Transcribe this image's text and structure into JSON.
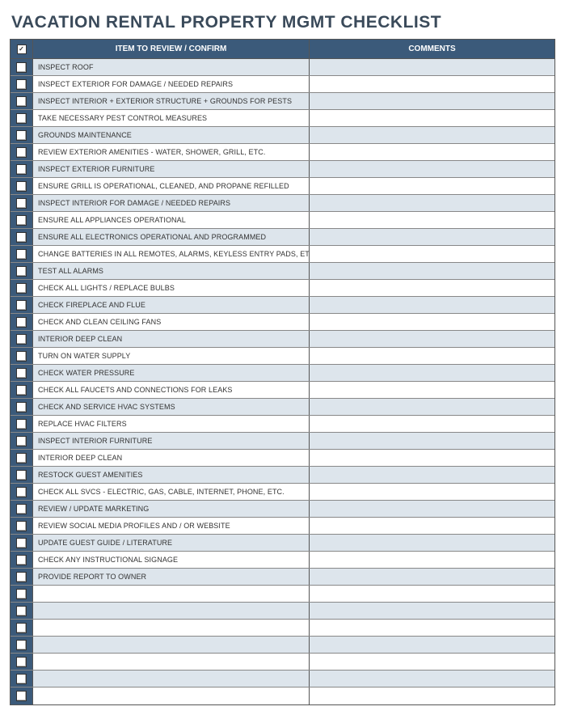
{
  "title": "VACATION RENTAL PROPERTY MGMT CHECKLIST",
  "columns": {
    "check_header_mark": "✓",
    "item": "ITEM TO REVIEW / CONFIRM",
    "comments": "COMMENTS"
  },
  "colors": {
    "header_bg": "#3b5a7a",
    "header_text": "#ffffff",
    "row_odd_bg": "#dde5ec",
    "row_even_bg": "#ffffff",
    "title_text": "#3a4a5a",
    "border": "#555555"
  },
  "rows": [
    {
      "item": "INSPECT ROOF",
      "comments": ""
    },
    {
      "item": "INSPECT EXTERIOR FOR DAMAGE / NEEDED REPAIRS",
      "comments": ""
    },
    {
      "item": "INSPECT INTERIOR + EXTERIOR STRUCTURE + GROUNDS FOR PESTS",
      "comments": ""
    },
    {
      "item": "TAKE NECESSARY PEST CONTROL MEASURES",
      "comments": ""
    },
    {
      "item": "GROUNDS MAINTENANCE",
      "comments": ""
    },
    {
      "item": "REVIEW EXTERIOR AMENITIES - WATER, SHOWER, GRILL, ETC.",
      "comments": ""
    },
    {
      "item": "INSPECT EXTERIOR FURNITURE",
      "comments": ""
    },
    {
      "item": "ENSURE GRILL IS OPERATIONAL, CLEANED, AND PROPANE REFILLED",
      "comments": ""
    },
    {
      "item": "INSPECT INTERIOR FOR DAMAGE / NEEDED REPAIRS",
      "comments": ""
    },
    {
      "item": "ENSURE ALL APPLIANCES OPERATIONAL",
      "comments": ""
    },
    {
      "item": "ENSURE ALL ELECTRONICS OPERATIONAL AND PROGRAMMED",
      "comments": ""
    },
    {
      "item": "CHANGE BATTERIES IN ALL REMOTES, ALARMS, KEYLESS ENTRY PADS, ETC.",
      "comments": ""
    },
    {
      "item": "TEST ALL ALARMS",
      "comments": ""
    },
    {
      "item": "CHECK ALL LIGHTS / REPLACE BULBS",
      "comments": ""
    },
    {
      "item": "CHECK FIREPLACE AND FLUE",
      "comments": ""
    },
    {
      "item": "CHECK AND CLEAN CEILING FANS",
      "comments": ""
    },
    {
      "item": "INTERIOR DEEP CLEAN",
      "comments": ""
    },
    {
      "item": "TURN ON WATER SUPPLY",
      "comments": ""
    },
    {
      "item": "CHECK WATER PRESSURE",
      "comments": ""
    },
    {
      "item": "CHECK ALL FAUCETS AND CONNECTIONS FOR LEAKS",
      "comments": ""
    },
    {
      "item": "CHECK AND SERVICE HVAC SYSTEMS",
      "comments": ""
    },
    {
      "item": "REPLACE HVAC FILTERS",
      "comments": ""
    },
    {
      "item": "INSPECT INTERIOR FURNITURE",
      "comments": ""
    },
    {
      "item": "INTERIOR DEEP CLEAN",
      "comments": ""
    },
    {
      "item": "RESTOCK GUEST AMENITIES",
      "comments": ""
    },
    {
      "item": "CHECK ALL SVCS - ELECTRIC, GAS, CABLE, INTERNET, PHONE, ETC.",
      "comments": ""
    },
    {
      "item": "REVIEW / UPDATE MARKETING",
      "comments": ""
    },
    {
      "item": "REVIEW SOCIAL MEDIA PROFILES AND / OR WEBSITE",
      "comments": ""
    },
    {
      "item": "UPDATE GUEST GUIDE / LITERATURE",
      "comments": ""
    },
    {
      "item": "CHECK ANY INSTRUCTIONAL SIGNAGE",
      "comments": ""
    },
    {
      "item": "PROVIDE REPORT TO OWNER",
      "comments": ""
    },
    {
      "item": "",
      "comments": ""
    },
    {
      "item": "",
      "comments": ""
    },
    {
      "item": "",
      "comments": ""
    },
    {
      "item": "",
      "comments": ""
    },
    {
      "item": "",
      "comments": ""
    },
    {
      "item": "",
      "comments": ""
    },
    {
      "item": "",
      "comments": ""
    }
  ]
}
